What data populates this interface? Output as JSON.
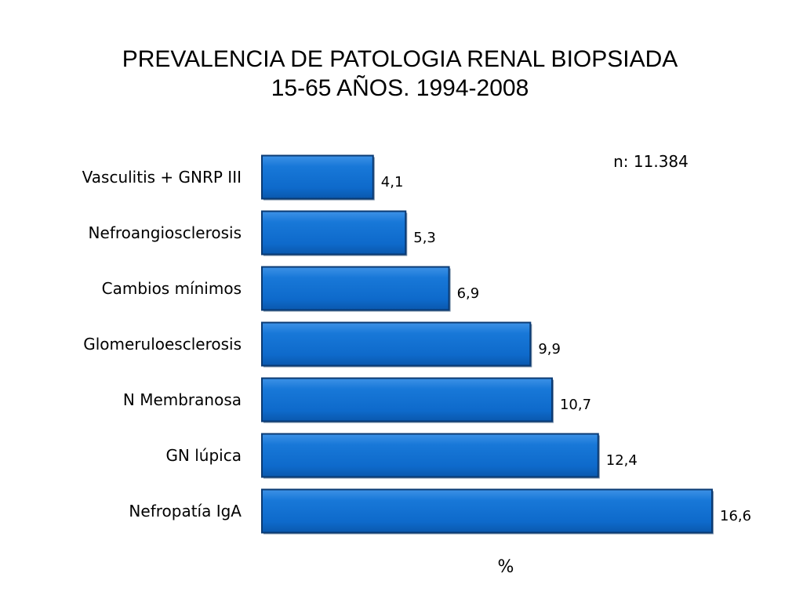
{
  "chart_data": {
    "type": "bar",
    "orientation": "horizontal",
    "title_lines": [
      "PREVALENCIA DE PATOLOGIA RENAL BIOPSIADA",
      "15-65 AÑOS. 1994-2008"
    ],
    "categories": [
      "Vasculitis + GNRP III",
      "Nefroangiosclerosis",
      "Cambios mínimos",
      "Glomeruloesclerosis",
      "N  Membranosa",
      "GN lúpica",
      "Nefropatía IgA"
    ],
    "values": [
      4.1,
      5.3,
      6.9,
      9.9,
      10.7,
      12.4,
      16.6
    ],
    "value_labels": [
      "4,1",
      "5,3",
      "6,9",
      "9,9",
      "10,7",
      "12,4",
      "16,6"
    ],
    "annotation": "n: 11.384",
    "xlabel": "%",
    "xlim": [
      0,
      16.6
    ],
    "grid": false,
    "bar_color": "#0e6fcc",
    "bar_edge_color": "#0a3a73"
  }
}
